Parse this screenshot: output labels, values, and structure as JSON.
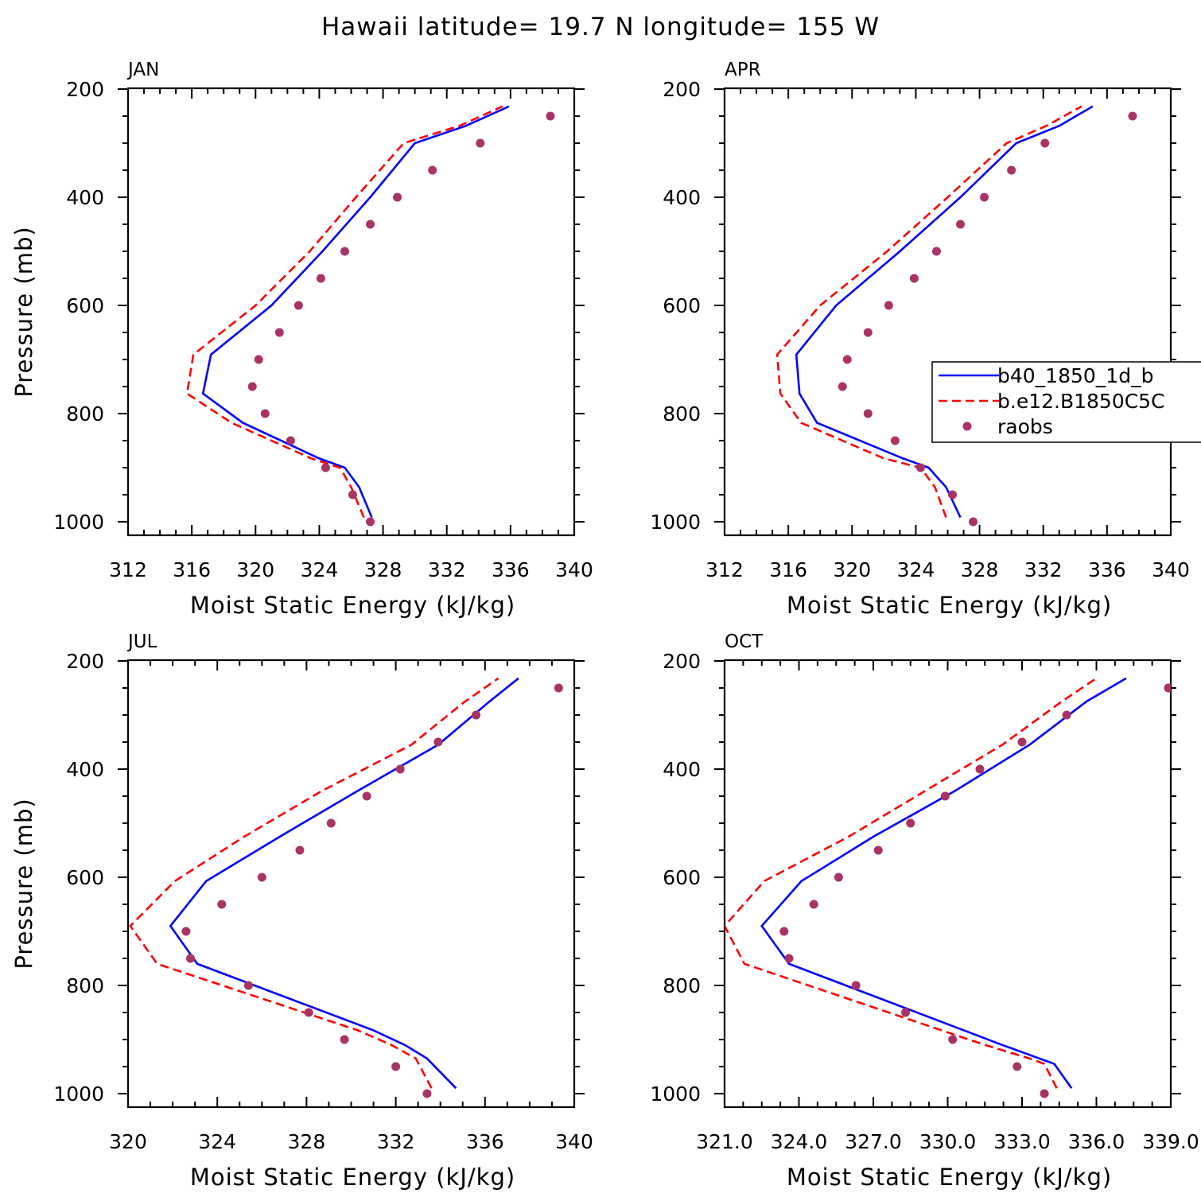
{
  "title": "Hawaii  latitude= 19.7 N longitude= 155 W",
  "colors": {
    "series1": "#0000ff",
    "series2": "#ff0000",
    "raobs": "#aa3366"
  },
  "legend": {
    "panel": 1,
    "entries": [
      "b40_1850_1d_b",
      "b.e12.B1850C5C",
      "raobs"
    ]
  },
  "chart_data": [
    {
      "type": "line",
      "title": "JAN",
      "xlabel": "Moist Static Energy (kJ/kg)",
      "ylabel": "Pressure (mb)",
      "xlim": [
        312,
        340
      ],
      "ylim": [
        1000,
        200
      ],
      "xticks": [
        312,
        316,
        320,
        324,
        328,
        332,
        336,
        340
      ],
      "xtick_labels": [
        "312",
        "316",
        "320",
        "324",
        "328",
        "332",
        "336",
        "340"
      ],
      "yticks": [
        200,
        400,
        600,
        800,
        1000
      ],
      "ytick_labels": [
        "200",
        "400",
        "600",
        "800",
        "1000"
      ],
      "series": [
        {
          "name": "b40_1850_1d_b",
          "style": "solid",
          "x": [
            327.3,
            326.5,
            325.6,
            324.0,
            319.2,
            316.7,
            317.2,
            321.0,
            324.2,
            327.2,
            330.0,
            333.2,
            335.9
          ],
          "y": [
            992,
            936,
            900,
            883,
            817,
            763,
            691,
            600,
            500,
            400,
            300,
            268,
            232
          ]
        },
        {
          "name": "b.e12.B1850C5C",
          "style": "dashed",
          "x": [
            326.8,
            326.0,
            325.3,
            323.5,
            318.5,
            315.7,
            316.1,
            320.0,
            323.4,
            326.3,
            329.3,
            332.8,
            335.5
          ],
          "y": [
            992,
            936,
            900,
            883,
            817,
            763,
            691,
            600,
            500,
            400,
            300,
            268,
            232
          ]
        },
        {
          "name": "raobs",
          "style": "dots",
          "x": [
            327.2,
            326.1,
            324.4,
            322.2,
            320.6,
            319.8,
            320.2,
            321.5,
            322.7,
            324.1,
            325.6,
            327.2,
            328.9,
            331.1,
            334.1,
            338.5
          ],
          "y": [
            1000,
            950,
            900,
            850,
            800,
            750,
            700,
            650,
            600,
            550,
            500,
            450,
            400,
            350,
            300,
            250
          ]
        }
      ]
    },
    {
      "type": "line",
      "title": "APR",
      "xlabel": "Moist Static Energy (kJ/kg)",
      "ylabel": "",
      "xlim": [
        312,
        340
      ],
      "ylim": [
        1000,
        200
      ],
      "xticks": [
        312,
        316,
        320,
        324,
        328,
        332,
        336,
        340
      ],
      "xtick_labels": [
        "312",
        "316",
        "320",
        "324",
        "328",
        "332",
        "336",
        "340"
      ],
      "yticks": [
        200,
        400,
        600,
        800,
        1000
      ],
      "ytick_labels": [
        "200",
        "400",
        "600",
        "800",
        "1000"
      ],
      "series": [
        {
          "name": "b40_1850_1d_b",
          "style": "solid",
          "x": [
            326.8,
            325.9,
            324.8,
            323.2,
            317.8,
            316.7,
            316.5,
            319.0,
            323.0,
            326.8,
            330.3,
            333.0,
            335.1
          ],
          "y": [
            992,
            936,
            900,
            883,
            817,
            763,
            691,
            600,
            500,
            400,
            300,
            268,
            232
          ]
        },
        {
          "name": "b.e12.B1850C5C",
          "style": "dashed",
          "x": [
            325.9,
            325.2,
            324.3,
            322.0,
            316.8,
            315.5,
            315.3,
            318.0,
            322.2,
            326.0,
            329.7,
            332.2,
            334.4
          ],
          "y": [
            992,
            936,
            900,
            883,
            817,
            763,
            691,
            600,
            500,
            400,
            300,
            268,
            232
          ]
        },
        {
          "name": "raobs",
          "style": "dots",
          "x": [
            327.6,
            326.3,
            324.3,
            322.7,
            321.0,
            319.4,
            319.7,
            321.0,
            322.3,
            323.9,
            325.3,
            326.8,
            328.3,
            330.0,
            332.1,
            337.6
          ],
          "y": [
            1000,
            950,
            900,
            850,
            800,
            750,
            700,
            650,
            600,
            550,
            500,
            450,
            400,
            350,
            300,
            250
          ]
        }
      ]
    },
    {
      "type": "line",
      "title": "JUL",
      "xlabel": "Moist Static Energy (kJ/kg)",
      "ylabel": "Pressure (mb)",
      "xlim": [
        320,
        340
      ],
      "ylim": [
        1000,
        200
      ],
      "xticks": [
        320,
        324,
        328,
        332,
        336,
        340
      ],
      "xtick_labels": [
        "320",
        "324",
        "328",
        "332",
        "336",
        "340"
      ],
      "yticks": [
        200,
        400,
        600,
        800,
        1000
      ],
      "ytick_labels": [
        "200",
        "400",
        "600",
        "800",
        "1000"
      ],
      "series": [
        {
          "name": "b40_1850_1d_b",
          "style": "solid",
          "x": [
            334.7,
            333.4,
            332.4,
            331.0,
            323.1,
            321.9,
            323.5,
            326.8,
            330.3,
            333.9,
            336.2,
            337.5
          ],
          "y": [
            990,
            935,
            910,
            883,
            760,
            690,
            607,
            525,
            440,
            355,
            275,
            232
          ]
        },
        {
          "name": "b.e12.B1850C5C",
          "style": "dashed",
          "x": [
            333.6,
            332.9,
            331.8,
            330.3,
            321.3,
            320.1,
            322.1,
            325.2,
            328.7,
            332.7,
            335.1,
            336.6
          ],
          "y": [
            990,
            935,
            910,
            883,
            760,
            690,
            607,
            525,
            440,
            355,
            275,
            232
          ]
        },
        {
          "name": "raobs",
          "style": "dots",
          "x": [
            333.4,
            332.0,
            329.7,
            328.1,
            325.4,
            322.8,
            322.6,
            324.2,
            326.0,
            327.7,
            329.1,
            330.7,
            332.2,
            333.9,
            335.6,
            339.3
          ],
          "y": [
            1000,
            950,
            900,
            850,
            800,
            750,
            700,
            650,
            600,
            550,
            500,
            450,
            400,
            350,
            300,
            250
          ]
        }
      ]
    },
    {
      "type": "line",
      "title": "OCT",
      "xlabel": "Moist Static Energy (kJ/kg)",
      "ylabel": "",
      "xlim": [
        321,
        339
      ],
      "ylim": [
        1000,
        200
      ],
      "xticks": [
        321,
        324,
        327,
        330,
        333,
        336,
        339
      ],
      "xtick_labels": [
        "321.0",
        "324.0",
        "327.0",
        "330.0",
        "333.0",
        "336.0",
        "339.0"
      ],
      "yticks": [
        200,
        400,
        600,
        800,
        1000
      ],
      "ytick_labels": [
        "200",
        "400",
        "600",
        "800",
        "1000"
      ],
      "series": [
        {
          "name": "b40_1850_1d_b",
          "style": "solid",
          "x": [
            335.0,
            334.3,
            333.7,
            332.2,
            323.6,
            322.5,
            324.1,
            327.0,
            330.3,
            333.3,
            335.6,
            337.2
          ],
          "y": [
            990,
            945,
            935,
            910,
            760,
            690,
            607,
            525,
            440,
            355,
            275,
            232
          ]
        },
        {
          "name": "b.e12.B1850C5C",
          "style": "dashed",
          "x": [
            334.4,
            333.9,
            333.3,
            331.5,
            321.8,
            321.0,
            322.6,
            326.0,
            329.1,
            332.2,
            334.6,
            336.0
          ],
          "y": [
            990,
            945,
            935,
            910,
            760,
            690,
            607,
            525,
            440,
            355,
            275,
            232
          ]
        },
        {
          "name": "raobs",
          "style": "dots",
          "x": [
            333.9,
            332.8,
            330.2,
            328.3,
            326.3,
            323.6,
            323.4,
            324.6,
            325.6,
            327.2,
            328.5,
            329.9,
            331.3,
            333.0,
            334.8,
            338.9
          ],
          "y": [
            1000,
            950,
            900,
            850,
            800,
            750,
            700,
            650,
            600,
            550,
            500,
            450,
            400,
            350,
            300,
            250
          ]
        }
      ]
    }
  ]
}
